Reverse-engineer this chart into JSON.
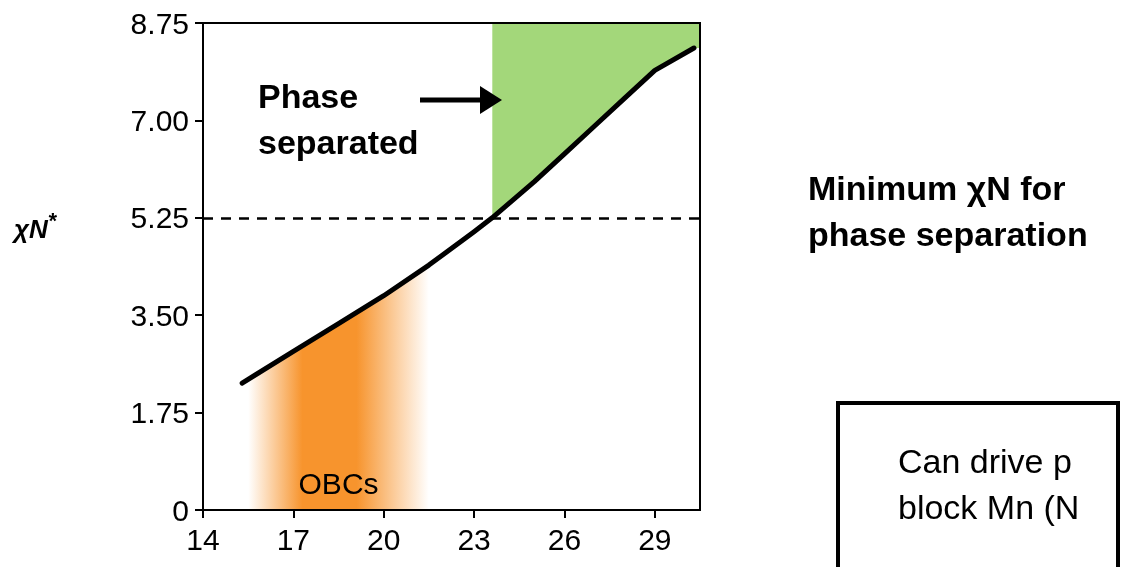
{
  "chart_data": {
    "type": "line",
    "ylabel": "χN$^{*}$",
    "x": [
      15.3,
      17,
      18.5,
      20,
      21.5,
      23,
      23.6,
      25,
      26,
      27,
      28,
      29,
      30.3
    ],
    "series": [
      {
        "color": "#000000",
        "values": [
          2.28,
          2.85,
          3.35,
          3.85,
          4.4,
          5.0,
          5.25,
          5.9,
          6.4,
          6.9,
          7.4,
          7.9,
          8.3
        ]
      }
    ],
    "xlim": [
      14,
      30.5
    ],
    "xticks": [
      14,
      17,
      20,
      23,
      26,
      29
    ],
    "ylim": [
      0,
      8.75
    ],
    "yticks": [
      0,
      1.75,
      {
        "value": 3.5,
        "label": "3.50"
      },
      5.25,
      {
        "value": 7,
        "label": "7.00"
      },
      8.75
    ],
    "ref_lines": [
      {
        "axis": "y",
        "value": 5.25,
        "label": "Minimum χN for\nphase separation",
        "line_style": "dashed",
        "color": "#000000"
      }
    ],
    "bands": [
      {
        "axis": "x",
        "from": 23.6,
        "to": 30.5,
        "color": "#a3d77a"
      },
      {
        "axis": "x",
        "from": 15.5,
        "to": 21.5,
        "color": "#f7942d",
        "label": "OBCs"
      }
    ],
    "annotations": [
      "Phase\nseparated",
      "Can drive p\nblock Mn (N"
    ],
    "grid": false,
    "marker": "none",
    "line_style": "solid"
  }
}
